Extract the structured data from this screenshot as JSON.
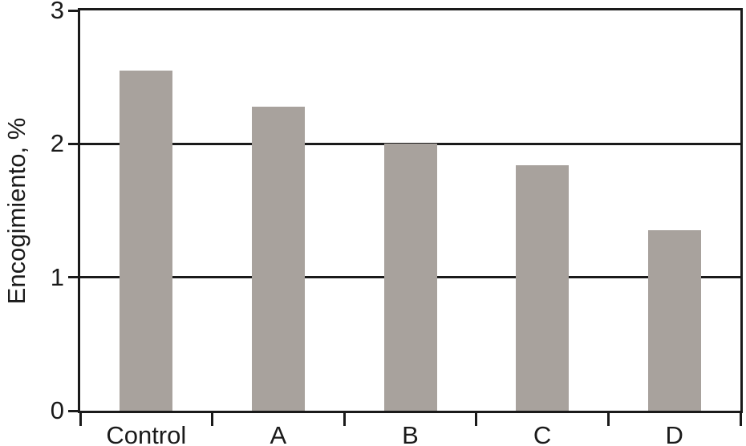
{
  "chart_data": {
    "type": "bar",
    "title": "",
    "xlabel": "",
    "ylabel": "Encogimiento, %",
    "categories": [
      "Control",
      "A",
      "B",
      "C",
      "D"
    ],
    "values": [
      2.55,
      2.28,
      2.0,
      1.84,
      1.35
    ],
    "ylim": [
      0,
      3
    ],
    "yticks": [
      0,
      1,
      2,
      3
    ],
    "grid": "horizontal-at-yticks",
    "legend": "none",
    "bar_color": "#a8a29d",
    "axis_color": "#1a1a1a",
    "background_color": "#ffffff"
  }
}
